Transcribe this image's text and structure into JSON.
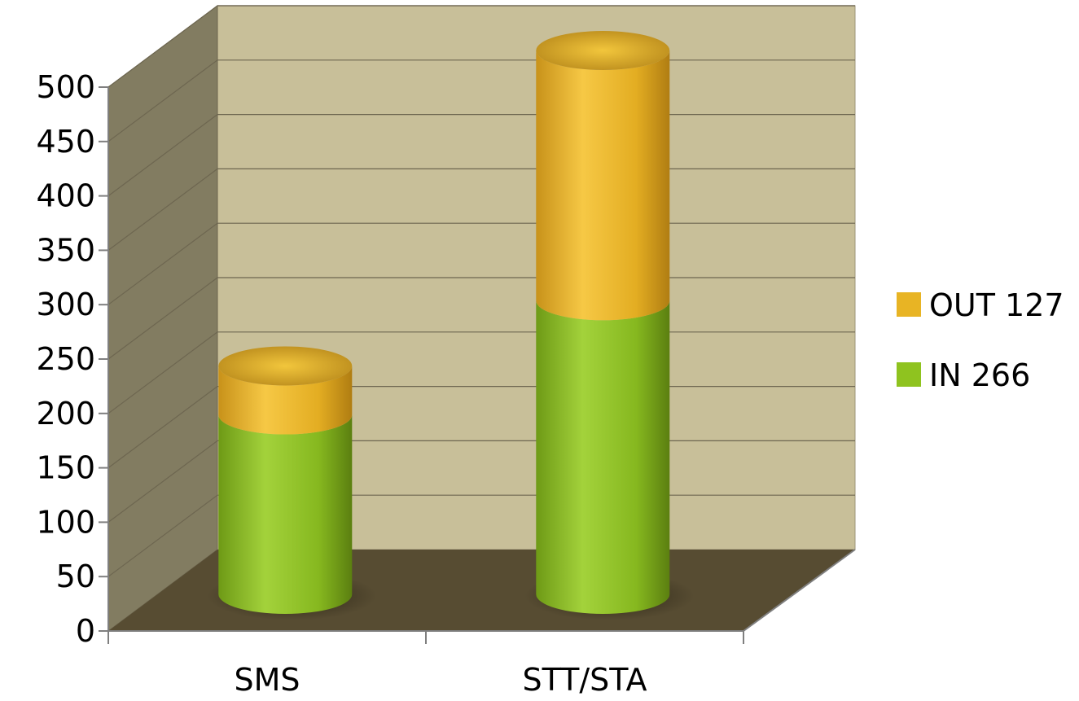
{
  "chart_data": {
    "type": "bar",
    "style": "3d-stacked-cylinder",
    "categories": [
      "SMS",
      "STT/STA"
    ],
    "series": [
      {
        "name": "IN 266",
        "values": [
          165,
          270
        ]
      },
      {
        "name": "OUT 127",
        "values": [
          45,
          230
        ]
      }
    ],
    "ylim": [
      0,
      500
    ],
    "ytick_step": 50,
    "title": "",
    "xlabel": "",
    "ylabel": "",
    "grid": true,
    "legend_position": "right"
  },
  "colors": {
    "IN 266": "#8fc31f",
    "OUT 127": "#e8b424",
    "back_wall": "#c8bf99",
    "side_wall": "#827c61",
    "floor": "#574c32",
    "grid": "#6d6650"
  }
}
